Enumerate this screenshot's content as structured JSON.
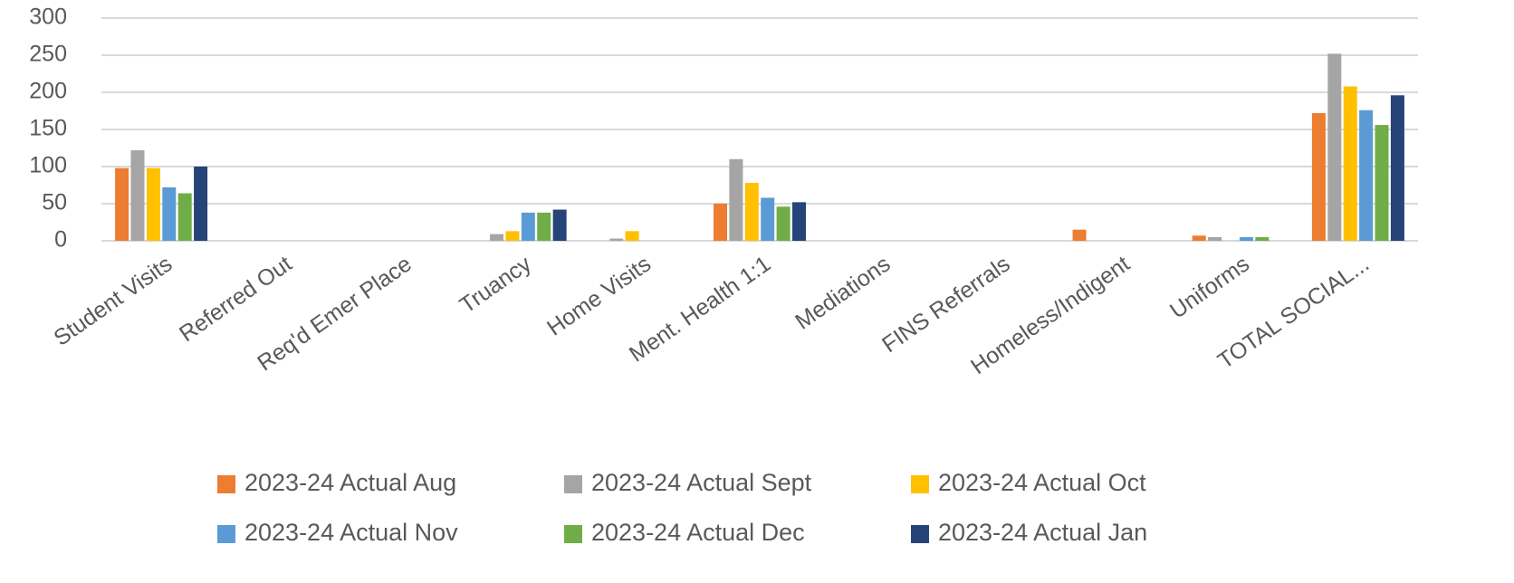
{
  "chart_data": {
    "type": "bar",
    "categories": [
      "Student Visits",
      "Referred Out",
      "Req'd Emer Place",
      "Truancy",
      "Home Visits",
      "Ment. Health 1:1",
      "Mediations",
      "FINS Referrals",
      "Homeless/Indigent",
      "Uniforms",
      "TOTAL SOCIAL..."
    ],
    "series": [
      {
        "name": "2023-24 Actual Aug",
        "color": "#ed7d31",
        "values": [
          98,
          0,
          0,
          0,
          0,
          50,
          0,
          0,
          15,
          7,
          172
        ]
      },
      {
        "name": "2023-24 Actual Sept",
        "color": "#a5a5a5",
        "values": [
          122,
          0,
          0,
          9,
          3,
          110,
          0,
          0,
          0,
          5,
          252
        ]
      },
      {
        "name": "2023-24 Actual Oct",
        "color": "#ffc000",
        "values": [
          98,
          0,
          0,
          13,
          13,
          78,
          0,
          0,
          0,
          0,
          208
        ]
      },
      {
        "name": "2023-24 Actual Nov",
        "color": "#5b9bd5",
        "values": [
          72,
          0,
          0,
          38,
          0,
          58,
          0,
          0,
          0,
          5,
          176
        ]
      },
      {
        "name": "2023-24 Actual Dec",
        "color": "#70ad47",
        "values": [
          64,
          0,
          0,
          38,
          0,
          46,
          0,
          0,
          0,
          5,
          156
        ]
      },
      {
        "name": "2023-24 Actual Jan",
        "color": "#264478",
        "values": [
          100,
          0,
          0,
          42,
          0,
          52,
          0,
          0,
          0,
          0,
          196
        ]
      }
    ],
    "ylim": [
      0,
      300
    ],
    "yticks": [
      0,
      50,
      100,
      150,
      200,
      250,
      300
    ],
    "grid": true
  }
}
